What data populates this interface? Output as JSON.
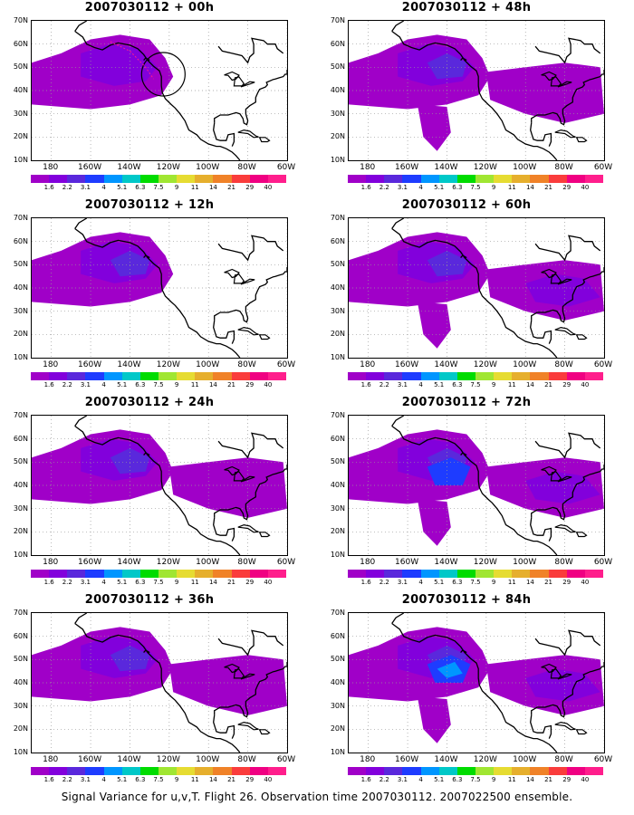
{
  "caption": "Signal Variance for u,v,T. Flight 26. Observation time 2007030112. 2007022500 ensemble.",
  "lat_labels": [
    "70N",
    "60N",
    "50N",
    "40N",
    "30N",
    "20N",
    "10N"
  ],
  "lon_labels": [
    "180",
    "160W",
    "140W",
    "120W",
    "100W",
    "80W",
    "60W"
  ],
  "legend_labels": [
    "1.6",
    "2.2",
    "3.1",
    "4",
    "5.1",
    "6.3",
    "7.5",
    "9",
    "11",
    "14",
    "21",
    "29",
    "40"
  ],
  "legend_colors": [
    "#a000c8",
    "#8200dc",
    "#5a28dc",
    "#1e3cff",
    "#0096ff",
    "#00c8c8",
    "#00dc00",
    "#a0e632",
    "#e6dc32",
    "#e6af2d",
    "#f08228",
    "#fa3c3c",
    "#f00082",
    "#ff1e8c"
  ],
  "panels": [
    {
      "title": "2007030112 + 00h",
      "level": 1
    },
    {
      "title": "2007030112 + 48h",
      "level": 4
    },
    {
      "title": "2007030112 + 12h",
      "level": 2
    },
    {
      "title": "2007030112 + 60h",
      "level": 5
    },
    {
      "title": "2007030112 + 24h",
      "level": 3
    },
    {
      "title": "2007030112 + 72h",
      "level": 6
    },
    {
      "title": "2007030112 + 36h",
      "level": 3
    },
    {
      "title": "2007030112 + 84h",
      "level": 7
    }
  ],
  "map_extent": {
    "lon_min": -190,
    "lon_max": -60,
    "lat_min": 10,
    "lat_max": 70
  }
}
